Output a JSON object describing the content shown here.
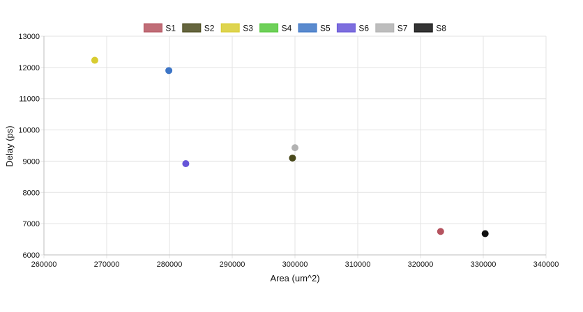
{
  "chart_data": {
    "type": "scatter",
    "title": "",
    "xlabel": "Area (um^2)",
    "ylabel": "Delay (ps)",
    "xlim": [
      260000,
      340000
    ],
    "ylim": [
      6000,
      13000
    ],
    "x_ticks": [
      260000,
      270000,
      280000,
      290000,
      300000,
      310000,
      320000,
      330000,
      340000
    ],
    "y_ticks": [
      6000,
      7000,
      8000,
      9000,
      10000,
      11000,
      12000,
      13000
    ],
    "grid": true,
    "legend_position": "top-center",
    "series": [
      {
        "name": "S1",
        "color": "#b5535f",
        "points": [
          {
            "x": 323200,
            "y": 6750
          }
        ]
      },
      {
        "name": "S2",
        "color": "#4a4a1c",
        "points": [
          {
            "x": 299600,
            "y": 9100
          }
        ]
      },
      {
        "name": "S3",
        "color": "#d8cc30",
        "points": [
          {
            "x": 268100,
            "y": 12230
          }
        ]
      },
      {
        "name": "S4",
        "color": "#55c83c",
        "points": []
      },
      {
        "name": "S5",
        "color": "#3d75c6",
        "points": [
          {
            "x": 279900,
            "y": 11900
          }
        ]
      },
      {
        "name": "S6",
        "color": "#6655d8",
        "points": [
          {
            "x": 282600,
            "y": 8920
          }
        ]
      },
      {
        "name": "S7",
        "color": "#b2b2b2",
        "points": [
          {
            "x": 300000,
            "y": 9430
          }
        ]
      },
      {
        "name": "S8",
        "color": "#111111",
        "points": [
          {
            "x": 330300,
            "y": 6680
          }
        ]
      }
    ]
  }
}
